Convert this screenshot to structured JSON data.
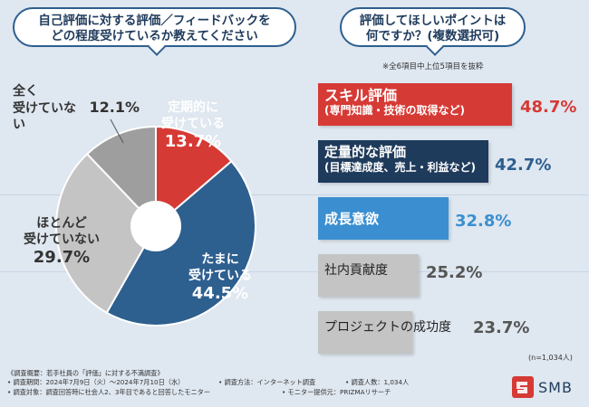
{
  "left_question": {
    "line1": "自己評価に対する評価／フィードバックを",
    "line2": "どの程度受けているか教えてください"
  },
  "right_question": {
    "line1": "評価してほしいポイントは",
    "line2": "何ですか？(複数選択可)"
  },
  "right_note": "※全6項目中上位5項目を抜粋",
  "sample_note": "(n=1,034人)",
  "colors": {
    "red": "#d63a35",
    "blue": "#2d5f8f",
    "light_blue": "#3b8fd0",
    "gray": "#9e9e9e",
    "light_gray": "#c4c4c4",
    "navy": "#1f3b5c"
  },
  "chart_data": [
    {
      "type": "pie",
      "title": "自己評価に対する評価／フィードバックをどの程度受けているか教えてください",
      "slices": [
        {
          "line1": "定期的に",
          "line2": "受けている",
          "pct": "13.7%",
          "value": 13.7
        },
        {
          "line1": "たまに",
          "line2": "受けている",
          "pct": "44.5%",
          "value": 44.5
        },
        {
          "line1": "ほとんど",
          "line2": "受けていない",
          "pct": "29.7%",
          "value": 29.7
        },
        {
          "line1": "全く",
          "line2": "受けていない",
          "pct": "12.1%",
          "value": 12.1
        }
      ]
    },
    {
      "type": "bar",
      "title": "評価してほしいポイントは何ですか？(複数選択可)",
      "unit": "%",
      "xlim": [
        0,
        48.7
      ],
      "bars": [
        {
          "line1": "スキル評価",
          "line2": "(専門知識・技術の取得など)",
          "pct": "48.7%",
          "value": 48.7
        },
        {
          "line1": "定量的な評価",
          "line2": "(目標達成度、売上・利益など)",
          "pct": "42.7%",
          "value": 42.7
        },
        {
          "line1": "成長意欲",
          "line2": "",
          "pct": "32.8%",
          "value": 32.8
        },
        {
          "line1": "社内貢献度",
          "line2": "",
          "pct": "25.2%",
          "value": 25.2
        },
        {
          "line1": "プロジェクトの成功度",
          "line2": "",
          "pct": "23.7%",
          "value": 23.7
        }
      ]
    }
  ],
  "footer": {
    "overview": "《調査概要：若手社員の「評価」に対する不満調査》",
    "period": "• 調査期間：2024年7月9日（火）～2024年7月10日（水）",
    "method": "• 調査方法：インターネット調査",
    "count": "• 調査人数：1,034人",
    "target": "• 調査対象：調査回答時に社会人2、3年目であると回答したモニター",
    "provider": "• モニター提供元：PRIZMAリサーチ"
  },
  "logo": {
    "text": "SMB"
  }
}
